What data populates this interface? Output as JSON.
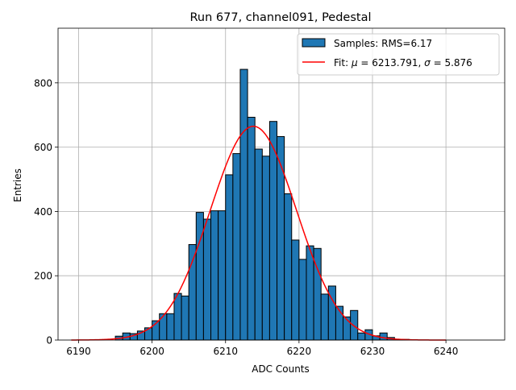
{
  "chart_data": {
    "type": "bar",
    "title": "Run 677, channel091, Pedestal",
    "xlabel": "ADC Counts",
    "ylabel": "Entries",
    "xlim": [
      6187.2,
      6248.0
    ],
    "ylim": [
      0,
      970
    ],
    "xticks": [
      6190,
      6200,
      6210,
      6220,
      6230,
      6240
    ],
    "yticks": [
      0,
      200,
      400,
      600,
      800
    ],
    "xtick_labels": [
      "6190",
      "6200",
      "6210",
      "6220",
      "6230",
      "6240"
    ],
    "ytick_labels": [
      "0",
      "200",
      "400",
      "600",
      "800"
    ],
    "grid": true,
    "legend_position": "top-right",
    "bar_color": "#1f77b4",
    "bar_edge_color": "#000000",
    "fit_color": "#ff0000",
    "bins": [
      {
        "left": 6195,
        "right": 6196,
        "value": 12
      },
      {
        "left": 6196,
        "right": 6197,
        "value": 22
      },
      {
        "left": 6197,
        "right": 6198,
        "value": 20
      },
      {
        "left": 6198,
        "right": 6199,
        "value": 28
      },
      {
        "left": 6199,
        "right": 6200,
        "value": 38
      },
      {
        "left": 6200,
        "right": 6201,
        "value": 60
      },
      {
        "left": 6201,
        "right": 6202,
        "value": 82
      },
      {
        "left": 6202,
        "right": 6203,
        "value": 82
      },
      {
        "left": 6203,
        "right": 6204,
        "value": 145
      },
      {
        "left": 6204,
        "right": 6205,
        "value": 137
      },
      {
        "left": 6205,
        "right": 6206,
        "value": 297
      },
      {
        "left": 6206,
        "right": 6207,
        "value": 397
      },
      {
        "left": 6207,
        "right": 6208,
        "value": 376
      },
      {
        "left": 6208,
        "right": 6209,
        "value": 402
      },
      {
        "left": 6209,
        "right": 6210,
        "value": 402
      },
      {
        "left": 6210,
        "right": 6211,
        "value": 514
      },
      {
        "left": 6211,
        "right": 6212,
        "value": 580
      },
      {
        "left": 6212,
        "right": 6213,
        "value": 842
      },
      {
        "left": 6213,
        "right": 6214,
        "value": 693
      },
      {
        "left": 6214,
        "right": 6215,
        "value": 594
      },
      {
        "left": 6215,
        "right": 6216,
        "value": 572
      },
      {
        "left": 6216,
        "right": 6217,
        "value": 680
      },
      {
        "left": 6217,
        "right": 6218,
        "value": 633
      },
      {
        "left": 6218,
        "right": 6219,
        "value": 455
      },
      {
        "left": 6219,
        "right": 6220,
        "value": 311
      },
      {
        "left": 6220,
        "right": 6221,
        "value": 251
      },
      {
        "left": 6221,
        "right": 6222,
        "value": 293
      },
      {
        "left": 6222,
        "right": 6223,
        "value": 285
      },
      {
        "left": 6223,
        "right": 6224,
        "value": 143
      },
      {
        "left": 6224,
        "right": 6225,
        "value": 168
      },
      {
        "left": 6225,
        "right": 6226,
        "value": 105
      },
      {
        "left": 6226,
        "right": 6227,
        "value": 72
      },
      {
        "left": 6227,
        "right": 6228,
        "value": 92
      },
      {
        "left": 6228,
        "right": 6229,
        "value": 22
      },
      {
        "left": 6229,
        "right": 6230,
        "value": 32
      },
      {
        "left": 6230,
        "right": 6231,
        "value": 13
      },
      {
        "left": 6231,
        "right": 6232,
        "value": 22
      },
      {
        "left": 6232,
        "right": 6233,
        "value": 8
      },
      {
        "left": 6233,
        "right": 6234,
        "value": 2
      },
      {
        "left": 6234,
        "right": 6235,
        "value": 2
      }
    ],
    "fit": {
      "mu": 6213.791,
      "sigma": 5.876,
      "amplitude": 665,
      "x_range": [
        6189,
        6240
      ]
    },
    "legend": [
      {
        "type": "patch",
        "label": "Samples: RMS=6.17"
      },
      {
        "type": "line",
        "label_prefix": "Fit: ",
        "mu_symbol": "μ",
        "mu_text": " = 6213.791, ",
        "sigma_symbol": "σ",
        "sigma_text": " = 5.876"
      }
    ]
  }
}
